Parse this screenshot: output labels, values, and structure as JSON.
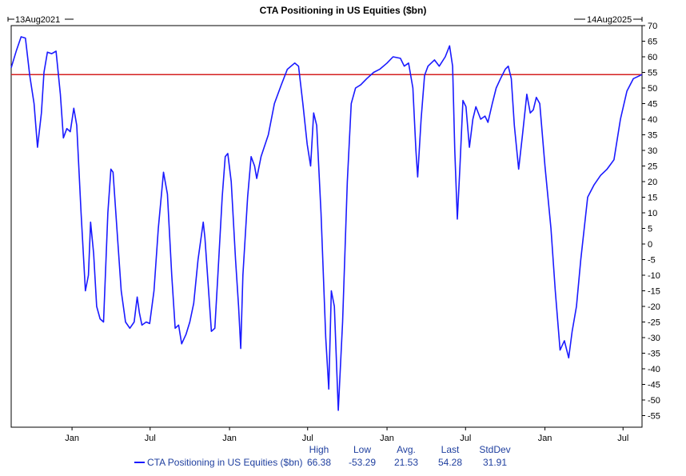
{
  "chart_data": {
    "type": "line",
    "title": "CTA Positioning in US Equities ($bn)",
    "start_label": "13Aug2021",
    "end_label": "14Aug2025",
    "x_start": "2021-08-13",
    "x_end": "2025-08-14",
    "ylim": [
      -57,
      70
    ],
    "yticks": [
      70,
      65,
      60,
      55,
      50,
      45,
      40,
      35,
      30,
      25,
      20,
      15,
      10,
      5,
      0,
      -5,
      -10,
      -15,
      -20,
      -25,
      -30,
      -35,
      -40,
      -45,
      -50,
      -55
    ],
    "xticks": [
      {
        "label": "Jan",
        "date": "2022-01-01"
      },
      {
        "label": "Jul",
        "date": "2022-07-01"
      },
      {
        "label": "Jan",
        "date": "2023-01-01"
      },
      {
        "label": "Jul",
        "date": "2023-07-01"
      },
      {
        "label": "Jan",
        "date": "2024-01-01"
      },
      {
        "label": "Jul",
        "date": "2024-07-01"
      },
      {
        "label": "Jan",
        "date": "2025-01-01"
      },
      {
        "label": "Jul",
        "date": "2025-07-01"
      }
    ],
    "reference_line": {
      "y": 54.3,
      "color": "#d42020"
    },
    "series": [
      {
        "name": "CTA Positioning in US Equities ($bn)",
        "color": "#1a1aff",
        "points": [
          [
            "2021-08-13",
            56.5
          ],
          [
            "2021-08-25",
            62
          ],
          [
            "2021-09-05",
            66.4
          ],
          [
            "2021-09-15",
            66
          ],
          [
            "2021-09-25",
            54
          ],
          [
            "2021-10-05",
            45
          ],
          [
            "2021-10-13",
            31
          ],
          [
            "2021-10-22",
            42
          ],
          [
            "2021-10-28",
            55
          ],
          [
            "2021-11-05",
            61.5
          ],
          [
            "2021-11-15",
            61
          ],
          [
            "2021-11-25",
            61.8
          ],
          [
            "2021-12-05",
            48
          ],
          [
            "2021-12-12",
            34
          ],
          [
            "2021-12-20",
            37
          ],
          [
            "2021-12-28",
            36
          ],
          [
            "2022-01-05",
            43.5
          ],
          [
            "2022-01-12",
            38
          ],
          [
            "2022-01-22",
            10
          ],
          [
            "2022-02-01",
            -15
          ],
          [
            "2022-02-08",
            -10
          ],
          [
            "2022-02-13",
            7
          ],
          [
            "2022-02-20",
            -3
          ],
          [
            "2022-02-27",
            -20
          ],
          [
            "2022-03-07",
            -24
          ],
          [
            "2022-03-15",
            -25
          ],
          [
            "2022-03-25",
            10
          ],
          [
            "2022-04-01",
            24
          ],
          [
            "2022-04-06",
            23
          ],
          [
            "2022-04-15",
            5
          ],
          [
            "2022-04-25",
            -15
          ],
          [
            "2022-05-05",
            -25
          ],
          [
            "2022-05-15",
            -27
          ],
          [
            "2022-05-25",
            -25
          ],
          [
            "2022-06-01",
            -17
          ],
          [
            "2022-06-06",
            -22
          ],
          [
            "2022-06-12",
            -26
          ],
          [
            "2022-06-22",
            -25
          ],
          [
            "2022-06-30",
            -25.5
          ],
          [
            "2022-07-10",
            -15
          ],
          [
            "2022-07-20",
            5
          ],
          [
            "2022-08-01",
            23
          ],
          [
            "2022-08-10",
            16
          ],
          [
            "2022-08-20",
            -10
          ],
          [
            "2022-08-28",
            -27
          ],
          [
            "2022-09-05",
            -26
          ],
          [
            "2022-09-12",
            -32
          ],
          [
            "2022-09-22",
            -29
          ],
          [
            "2022-10-01",
            -25
          ],
          [
            "2022-10-10",
            -19
          ],
          [
            "2022-10-20",
            -5
          ],
          [
            "2022-11-01",
            7
          ],
          [
            "2022-11-05",
            2
          ],
          [
            "2022-11-12",
            -12
          ],
          [
            "2022-11-20",
            -28
          ],
          [
            "2022-11-28",
            -27
          ],
          [
            "2022-12-05",
            -10
          ],
          [
            "2022-12-15",
            15
          ],
          [
            "2022-12-22",
            28
          ],
          [
            "2022-12-28",
            29
          ],
          [
            "2023-01-05",
            20
          ],
          [
            "2023-01-15",
            -5
          ],
          [
            "2023-01-22",
            -20
          ],
          [
            "2023-01-27",
            -33.5
          ],
          [
            "2023-02-01",
            -10
          ],
          [
            "2023-02-12",
            15
          ],
          [
            "2023-02-20",
            28
          ],
          [
            "2023-02-28",
            25
          ],
          [
            "2023-03-05",
            21
          ],
          [
            "2023-03-15",
            28
          ],
          [
            "2023-04-01",
            35
          ],
          [
            "2023-04-15",
            45
          ],
          [
            "2023-05-01",
            51
          ],
          [
            "2023-05-15",
            56
          ],
          [
            "2023-06-01",
            58
          ],
          [
            "2023-06-10",
            57
          ],
          [
            "2023-06-20",
            45
          ],
          [
            "2023-06-30",
            32
          ],
          [
            "2023-07-08",
            25
          ],
          [
            "2023-07-15",
            42
          ],
          [
            "2023-07-22",
            38
          ],
          [
            "2023-08-01",
            10
          ],
          [
            "2023-08-12",
            -30
          ],
          [
            "2023-08-19",
            -46.5
          ],
          [
            "2023-08-25",
            -15
          ],
          [
            "2023-09-01",
            -20
          ],
          [
            "2023-09-10",
            -53.3
          ],
          [
            "2023-09-20",
            -25
          ],
          [
            "2023-10-01",
            20
          ],
          [
            "2023-10-10",
            45
          ],
          [
            "2023-10-20",
            50
          ],
          [
            "2023-11-01",
            51
          ],
          [
            "2023-11-15",
            53
          ],
          [
            "2023-12-01",
            55
          ],
          [
            "2023-12-15",
            56
          ],
          [
            "2024-01-01",
            58
          ],
          [
            "2024-01-15",
            60
          ],
          [
            "2024-02-01",
            59.5
          ],
          [
            "2024-02-10",
            57
          ],
          [
            "2024-02-20",
            58
          ],
          [
            "2024-03-01",
            50
          ],
          [
            "2024-03-08",
            30
          ],
          [
            "2024-03-12",
            21.5
          ],
          [
            "2024-03-20",
            40
          ],
          [
            "2024-03-28",
            54
          ],
          [
            "2024-04-05",
            57
          ],
          [
            "2024-04-20",
            59
          ],
          [
            "2024-05-01",
            57
          ],
          [
            "2024-05-15",
            60
          ],
          [
            "2024-05-25",
            63.5
          ],
          [
            "2024-06-01",
            57
          ],
          [
            "2024-06-06",
            30
          ],
          [
            "2024-06-12",
            8
          ],
          [
            "2024-06-18",
            25
          ],
          [
            "2024-06-25",
            46
          ],
          [
            "2024-07-02",
            44
          ],
          [
            "2024-07-10",
            31
          ],
          [
            "2024-07-18",
            40
          ],
          [
            "2024-07-25",
            44
          ],
          [
            "2024-08-05",
            40
          ],
          [
            "2024-08-15",
            41
          ],
          [
            "2024-08-22",
            39
          ],
          [
            "2024-09-01",
            45
          ],
          [
            "2024-09-10",
            50
          ],
          [
            "2024-09-20",
            53
          ],
          [
            "2024-10-01",
            56
          ],
          [
            "2024-10-08",
            57
          ],
          [
            "2024-10-15",
            53
          ],
          [
            "2024-10-22",
            38
          ],
          [
            "2024-11-01",
            24
          ],
          [
            "2024-11-10",
            35
          ],
          [
            "2024-11-20",
            48
          ],
          [
            "2024-11-28",
            42
          ],
          [
            "2024-12-05",
            43
          ],
          [
            "2024-12-12",
            47
          ],
          [
            "2024-12-20",
            45
          ],
          [
            "2025-01-01",
            25
          ],
          [
            "2025-01-15",
            5
          ],
          [
            "2025-01-25",
            -15
          ],
          [
            "2025-02-05",
            -34
          ],
          [
            "2025-02-15",
            -31
          ],
          [
            "2025-02-25",
            -36.5
          ],
          [
            "2025-03-05",
            -28
          ],
          [
            "2025-03-15",
            -20
          ],
          [
            "2025-03-25",
            -5
          ],
          [
            "2025-04-10",
            15
          ],
          [
            "2025-04-25",
            19
          ],
          [
            "2025-05-10",
            22
          ],
          [
            "2025-05-25",
            24
          ],
          [
            "2025-06-10",
            27
          ],
          [
            "2025-06-25",
            40
          ],
          [
            "2025-07-10",
            49
          ],
          [
            "2025-07-25",
            53
          ],
          [
            "2025-08-14",
            54.3
          ]
        ]
      }
    ],
    "legend": {
      "placement": "bottom",
      "label": "CTA Positioning in US Equities ($bn)",
      "stats": [
        {
          "header": "High",
          "value": "66.38"
        },
        {
          "header": "Low",
          "value": "-53.29"
        },
        {
          "header": "Avg.",
          "value": "21.53"
        },
        {
          "header": "Last",
          "value": "54.28"
        },
        {
          "header": "StdDev",
          "value": "31.91"
        }
      ]
    }
  }
}
